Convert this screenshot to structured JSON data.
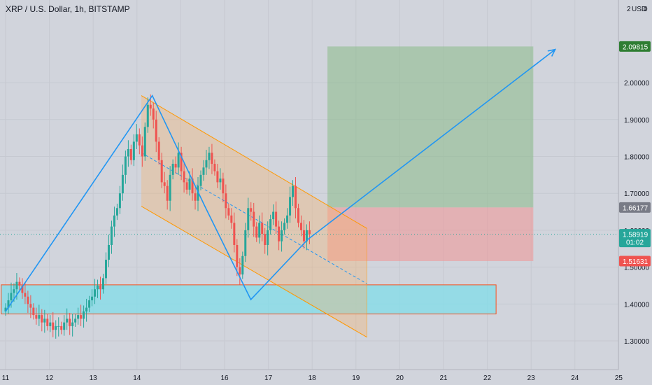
{
  "chart_data": {
    "type": "candlestick",
    "title": "XRP / U.S. Dollar, 1h, BITSTAMP",
    "currency_unit": "USD",
    "y_top_label": "2",
    "y_top_suffix": "0",
    "ylim": [
      1.23,
      2.22
    ],
    "y_ticks": [
      {
        "v": 1.3,
        "label": "1.30000"
      },
      {
        "v": 1.4,
        "label": "1.40000"
      },
      {
        "v": 1.5,
        "label": "1.50000"
      },
      {
        "v": 1.6,
        "label": "1.60000"
      },
      {
        "v": 1.7,
        "label": "1.70000"
      },
      {
        "v": 1.8,
        "label": "1.80000"
      },
      {
        "v": 1.9,
        "label": "1.90000"
      },
      {
        "v": 2.0,
        "label": "2.00000"
      }
    ],
    "x_ticks": [
      {
        "d": 11,
        "label": "11"
      },
      {
        "d": 12,
        "label": "12"
      },
      {
        "d": 13,
        "label": "13"
      },
      {
        "d": 14,
        "label": "14"
      },
      {
        "d": 15,
        "label": ""
      },
      {
        "d": 16,
        "label": "16"
      },
      {
        "d": 17,
        "label": "17"
      },
      {
        "d": 18,
        "label": "18"
      },
      {
        "d": 19,
        "label": "19"
      },
      {
        "d": 20,
        "label": "20"
      },
      {
        "d": 21,
        "label": "21"
      },
      {
        "d": 22,
        "label": "22"
      },
      {
        "d": 23,
        "label": "23"
      },
      {
        "d": 24,
        "label": "24"
      },
      {
        "d": 25,
        "label": "25"
      }
    ],
    "price_tags": [
      {
        "v": 2.09815,
        "label": "2.09815",
        "color": "#2e7d32"
      },
      {
        "v": 1.66177,
        "label": "1.66177",
        "color": "#787b86"
      },
      {
        "v": 1.58919,
        "label": "1.58919",
        "sub": "01:02",
        "color": "#26a69a"
      },
      {
        "v": 1.51631,
        "label": "1.51631",
        "color": "#ef5350"
      }
    ],
    "candles_close": [
      1.39,
      1.41,
      1.43,
      1.44,
      1.46,
      1.45,
      1.43,
      1.42,
      1.4,
      1.39,
      1.37,
      1.36,
      1.37,
      1.35,
      1.36,
      1.34,
      1.35,
      1.33,
      1.34,
      1.34,
      1.33,
      1.35,
      1.36,
      1.34,
      1.35,
      1.36,
      1.37,
      1.36,
      1.38,
      1.39,
      1.41,
      1.42,
      1.44,
      1.45,
      1.44,
      1.47,
      1.52,
      1.56,
      1.61,
      1.64,
      1.66,
      1.7,
      1.75,
      1.8,
      1.82,
      1.79,
      1.84,
      1.86,
      1.83,
      1.8,
      1.88,
      1.94,
      1.93,
      1.9,
      1.84,
      1.79,
      1.73,
      1.72,
      1.68,
      1.75,
      1.78,
      1.77,
      1.81,
      1.76,
      1.73,
      1.71,
      1.74,
      1.7,
      1.68,
      1.72,
      1.75,
      1.77,
      1.79,
      1.81,
      1.78,
      1.76,
      1.73,
      1.74,
      1.7,
      1.66,
      1.64,
      1.62,
      1.56,
      1.5,
      1.48,
      1.53,
      1.6,
      1.66,
      1.65,
      1.61,
      1.58,
      1.62,
      1.59,
      1.56,
      1.6,
      1.63,
      1.65,
      1.61,
      1.57,
      1.6,
      1.62,
      1.64,
      1.69,
      1.72,
      1.66,
      1.62,
      1.6,
      1.57,
      1.6,
      1.59
    ],
    "candles_day_start": 11.0,
    "candles_day_end": 17.94,
    "zigzag": [
      {
        "d": 11.0,
        "v": 1.38
      },
      {
        "d": 14.35,
        "v": 1.965
      },
      {
        "d": 15.55,
        "v": 1.665
      },
      {
        "d": 16.6,
        "v": 1.412
      },
      {
        "d": 17.9,
        "v": 1.575
      },
      {
        "d": 23.55,
        "v": 2.09
      }
    ],
    "channel": {
      "upper": [
        {
          "d": 14.1,
          "v": 1.965
        },
        {
          "d": 19.25,
          "v": 1.605
        }
      ],
      "lower": [
        {
          "d": 14.1,
          "v": 1.665
        },
        {
          "d": 19.25,
          "v": 1.31
        }
      ],
      "mid": [
        {
          "d": 14.1,
          "v": 1.81
        },
        {
          "d": 19.25,
          "v": 1.455
        }
      ],
      "fill": "#f6b26b",
      "stroke": "#ff9800"
    },
    "demand_zone": {
      "d0": 10.9,
      "d1": 22.2,
      "v0": 1.373,
      "v1": 1.452,
      "fill": "#80deea",
      "stroke": "#f4511e"
    },
    "target_zone": {
      "d0": 18.35,
      "d1": 23.05,
      "v0": 1.66177,
      "v1": 2.09815,
      "fill": "#8fbc8f"
    },
    "stop_zone": {
      "d0": 18.35,
      "d1": 23.05,
      "v0": 1.51631,
      "v1": 1.66177,
      "fill": "#ef9a9a"
    },
    "current_price": 1.58919,
    "colors": {
      "up": "#26a69a",
      "down": "#ef5350",
      "zigzag": "#2196f3",
      "background": "#d1d4dc"
    }
  }
}
